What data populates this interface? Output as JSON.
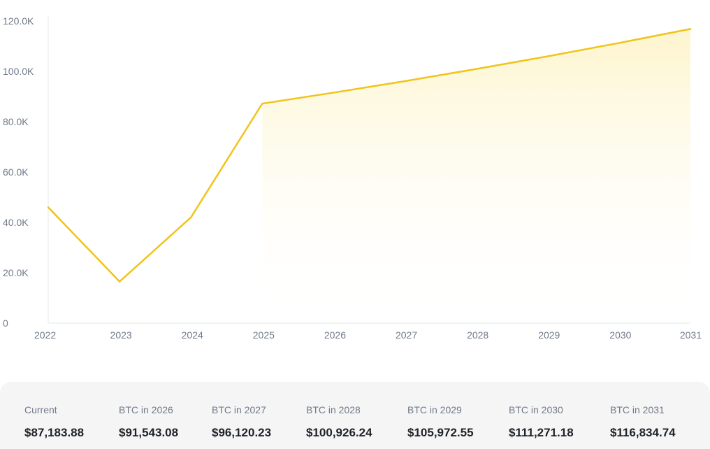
{
  "chart_data": {
    "type": "area",
    "x": [
      "2022",
      "2023",
      "2024",
      "2025",
      "2026",
      "2027",
      "2028",
      "2029",
      "2030",
      "2031"
    ],
    "values": [
      46000,
      16500,
      42000,
      87183.88,
      91543.08,
      96120.23,
      100926.24,
      105972.55,
      111271.18,
      116834.74
    ],
    "shaded_from": "2025",
    "y_ticks": [
      "0",
      "20.0K",
      "40.0K",
      "60.0K",
      "80.0K",
      "100.0K",
      "120.0K"
    ],
    "ylim": [
      0,
      120000
    ],
    "line_color": "#f0c419",
    "fill_color": "#fdf6d0",
    "grid": false
  },
  "summary": [
    {
      "label": "Current",
      "value": "$87,183.88"
    },
    {
      "label": "BTC in 2026",
      "value": "$91,543.08"
    },
    {
      "label": "BTC in 2027",
      "value": "$96,120.23"
    },
    {
      "label": "BTC in 2028",
      "value": "$100,926.24"
    },
    {
      "label": "BTC in 2029",
      "value": "$105,972.55"
    },
    {
      "label": "BTC in 2030",
      "value": "$111,271.18"
    },
    {
      "label": "BTC in 2031",
      "value": "$116,834.74"
    }
  ]
}
